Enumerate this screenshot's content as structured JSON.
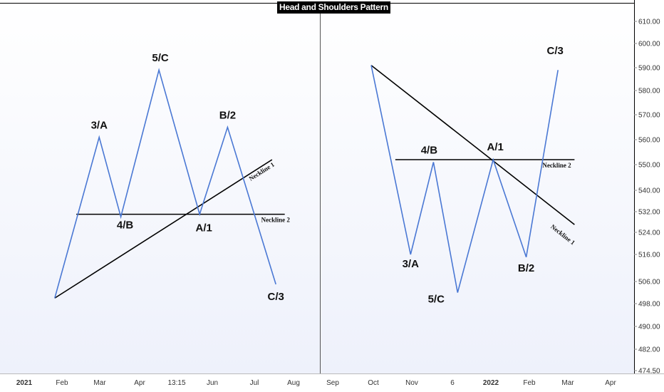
{
  "chart_data": {
    "type": "line",
    "title": "Head and Shoulders Pattern",
    "colors": {
      "wave": "#4a78d4",
      "neckline": "#000000",
      "axis_text": "#333333"
    },
    "y_axis": {
      "position": "right",
      "scale": "log",
      "ticks": [
        "610.00",
        "600.00",
        "590.00",
        "580.00",
        "570.00",
        "560.00",
        "550.00",
        "540.00",
        "532.00",
        "524.00",
        "516.00",
        "506.00",
        "498.00",
        "490.00",
        "482.00",
        "474.50"
      ]
    },
    "x_axis": {
      "ticks": [
        {
          "label": "2021",
          "bold": true
        },
        {
          "label": "Feb"
        },
        {
          "label": "Mar"
        },
        {
          "label": "Apr"
        },
        {
          "label": "13:15"
        },
        {
          "label": "Jun"
        },
        {
          "label": "Jul"
        },
        {
          "label": "Aug"
        },
        {
          "label": "Sep"
        },
        {
          "label": "Oct"
        },
        {
          "label": "Nov"
        },
        {
          "label": "6"
        },
        {
          "label": "2022",
          "bold": true
        },
        {
          "label": "Feb"
        },
        {
          "label": "Mar"
        },
        {
          "label": "Apr"
        }
      ]
    },
    "patterns": [
      {
        "name": "left",
        "wave": [
          {
            "label": "",
            "x": "2021-01-25",
            "y": 500
          },
          {
            "label": "3/A",
            "x": "2021-03-01",
            "y": 561
          },
          {
            "label": "4/B",
            "x": "2021-03-18",
            "y": 530
          },
          {
            "label": "5/C",
            "x": "2021-04-17",
            "y": 589
          },
          {
            "label": "A/1",
            "x": "2021-05-19",
            "y": 531
          },
          {
            "label": "B/2",
            "x": "2021-06-10",
            "y": 565
          },
          {
            "label": "C/3",
            "x": "2021-07-18",
            "y": 505
          }
        ],
        "necklines": [
          {
            "label": "Neckline 1",
            "from": {
              "x": "2021-01-25",
              "y": 500
            },
            "to": {
              "x": "2021-07-15",
              "y": 552
            }
          },
          {
            "label": "Neckline 2",
            "from": {
              "x": "2021-02-11",
              "y": 531
            },
            "to": {
              "x": "2021-07-25",
              "y": 531
            }
          }
        ]
      },
      {
        "name": "right",
        "wave": [
          {
            "label": "",
            "x": "2021-10-01",
            "y": 591
          },
          {
            "label": "3/A",
            "x": "2021-11-01",
            "y": 516
          },
          {
            "label": "4/B",
            "x": "2021-11-19",
            "y": 551
          },
          {
            "label": "5/C",
            "x": "2021-12-08",
            "y": 502
          },
          {
            "label": "A/1",
            "x": "2022-01-05",
            "y": 552
          },
          {
            "label": "B/2",
            "x": "2022-01-31",
            "y": 515
          },
          {
            "label": "C/3",
            "x": "2022-02-25",
            "y": 589
          }
        ],
        "necklines": [
          {
            "label": "Neckline 1",
            "from": {
              "x": "2021-10-01",
              "y": 591
            },
            "to": {
              "x": "2022-03-10",
              "y": 527
            }
          },
          {
            "label": "Neckline 2",
            "from": {
              "x": "2021-10-20",
              "y": 552
            },
            "to": {
              "x": "2022-03-10",
              "y": 552
            }
          }
        ]
      }
    ]
  }
}
